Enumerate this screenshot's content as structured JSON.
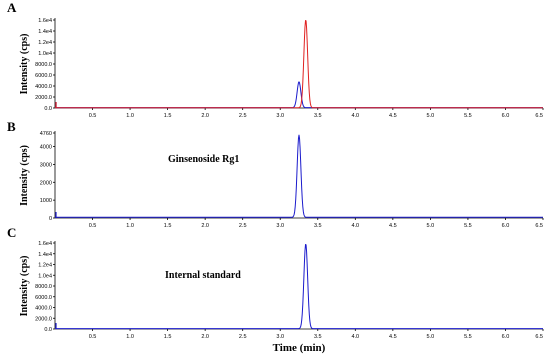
{
  "chart_data": [
    {
      "type": "line",
      "panel_label": "A",
      "ylabel": "Intensity (cps)",
      "xlabel": "",
      "annotation": "",
      "xlim": [
        0,
        6.5
      ],
      "ylim": [
        0,
        16000
      ],
      "yticks": [
        0,
        2000,
        4000,
        6000,
        8000,
        10000,
        12000,
        14000,
        16000
      ],
      "ytick_labels": [
        "0.0",
        "2000.0",
        "4000.0",
        "6000.0",
        "8000.0",
        "1.0e4",
        "1.2e4",
        "1.4e4",
        "1.6e4"
      ],
      "xticks": [
        0.5,
        1.0,
        1.5,
        2.0,
        2.5,
        3.0,
        3.5,
        4.0,
        4.5,
        5.0,
        5.5,
        6.0,
        6.5
      ],
      "xtick_labels": [
        "0.5",
        "1.0",
        "1.5",
        "2.0",
        "2.5",
        "3.0",
        "3.5",
        "4.0",
        "4.5",
        "5.0",
        "5.5",
        "6.0",
        "6.5"
      ],
      "series": [
        {
          "color": "#1a1acc",
          "baseline": 60,
          "peaks": [
            {
              "x": 3.25,
              "y": 4700,
              "w": 0.025
            }
          ]
        },
        {
          "color": "#e02020",
          "baseline": 40,
          "peaks": [
            {
              "x": 3.34,
              "y": 16000,
              "w": 0.025
            }
          ]
        }
      ]
    },
    {
      "type": "line",
      "panel_label": "B",
      "ylabel": "Intensity (cps)",
      "xlabel": "",
      "annotation": "Ginsenoside Rg1",
      "xlim": [
        0,
        6.5
      ],
      "ylim": [
        0,
        4760
      ],
      "yticks": [
        0,
        1000,
        2000,
        3000,
        4000,
        4760
      ],
      "ytick_labels": [
        "0",
        "1000",
        "2000",
        "3000",
        "4000",
        "4760"
      ],
      "xticks": [
        0.5,
        1.0,
        1.5,
        2.0,
        2.5,
        3.0,
        3.5,
        4.0,
        4.5,
        5.0,
        5.5,
        6.0,
        6.5
      ],
      "xtick_labels": [
        "0.5",
        "1.0",
        "1.5",
        "2.0",
        "2.5",
        "3.0",
        "3.5",
        "4.0",
        "4.5",
        "5.0",
        "5.5",
        "6.0",
        "6.5"
      ],
      "series": [
        {
          "color": "#1a1acc",
          "baseline": 40,
          "peaks": [
            {
              "x": 3.25,
              "y": 4600,
              "w": 0.025
            }
          ]
        }
      ]
    },
    {
      "type": "line",
      "panel_label": "C",
      "ylabel": "Intensity (cps)",
      "xlabel": "Time (min)",
      "annotation": "Internal standard",
      "xlim": [
        0,
        6.5
      ],
      "ylim": [
        0,
        16000
      ],
      "yticks": [
        0,
        2000,
        4000,
        6000,
        8000,
        10000,
        12000,
        14000,
        16000
      ],
      "ytick_labels": [
        "0.0",
        "2000.0",
        "4000.0",
        "6000.0",
        "8000.0",
        "1.0e4",
        "1.2e4",
        "1.4e4",
        "1.6e4"
      ],
      "xticks": [
        0.5,
        1.0,
        1.5,
        2.0,
        2.5,
        3.0,
        3.5,
        4.0,
        4.5,
        5.0,
        5.5,
        6.0,
        6.5
      ],
      "xtick_labels": [
        "0.5",
        "1.0",
        "1.5",
        "2.0",
        "2.5",
        "3.0",
        "3.5",
        "4.0",
        "4.5",
        "5.0",
        "5.5",
        "6.0",
        "6.5"
      ],
      "series": [
        {
          "color": "#1a1acc",
          "baseline": 60,
          "peaks": [
            {
              "x": 3.34,
              "y": 15800,
              "w": 0.025
            }
          ]
        }
      ]
    }
  ]
}
